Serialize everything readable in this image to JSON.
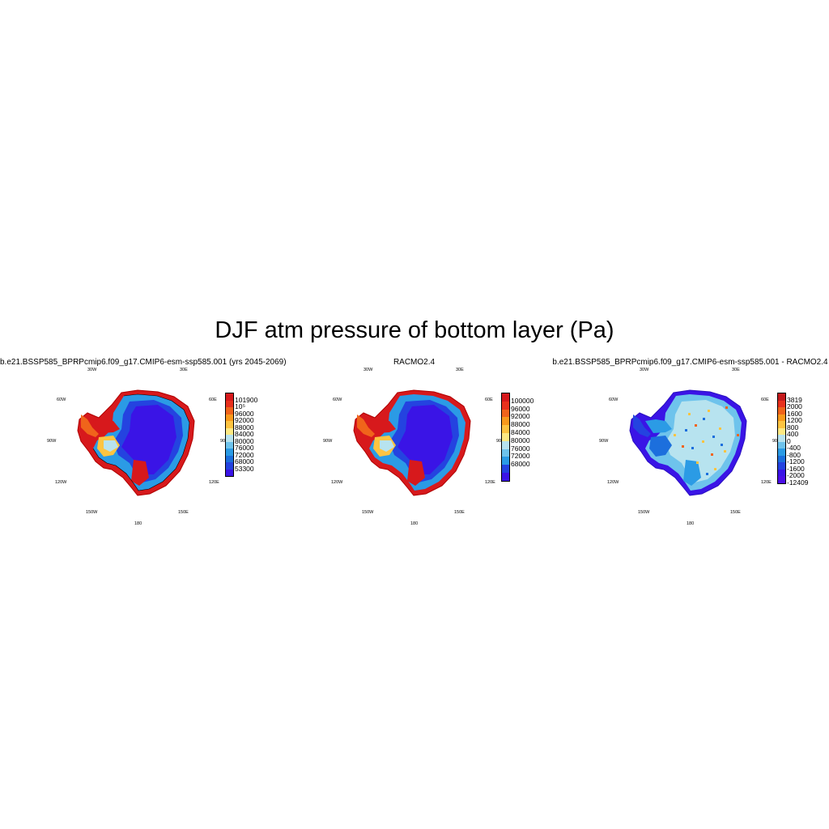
{
  "figure": {
    "title": "DJF atm pressure of bottom layer (Pa)"
  },
  "panels": [
    {
      "title": "b.e21.BSSP585_BPRPcmip6.f09_g17.CMIP6-esm-ssp585.001 (yrs 2045-2069)",
      "lon_labels": [
        "30W",
        "30E",
        "60W",
        "60E",
        "90W",
        "90E",
        "120W",
        "120E",
        "150W",
        "150E",
        "180"
      ],
      "colorbar": {
        "labels": [
          "101900",
          "10⁵",
          "96000",
          "92000",
          "88000",
          "84000",
          "80000",
          "76000",
          "72000",
          "68000",
          "53300"
        ],
        "colors": [
          "#d7191c",
          "#e8311d",
          "#f0641b",
          "#f89a1c",
          "#fdc441",
          "#fde983",
          "#b7e3ef",
          "#6ec3ec",
          "#2b9be5",
          "#1c6fdd",
          "#2443e0",
          "#3a14e6"
        ]
      }
    },
    {
      "title": "RACMO2.4",
      "lon_labels": [
        "30W",
        "30E",
        "60W",
        "60E",
        "90W",
        "90E",
        "120W",
        "120E",
        "150W",
        "150E",
        "180"
      ],
      "colorbar": {
        "labels": [
          "100000",
          "96000",
          "92000",
          "88000",
          "84000",
          "80000",
          "76000",
          "72000",
          "68000"
        ],
        "colors": [
          "#d7191c",
          "#e8311d",
          "#f0641b",
          "#f89a1c",
          "#fdc441",
          "#fde983",
          "#b7e3ef",
          "#6ec3ec",
          "#2b9be5",
          "#2443e0",
          "#3a14e6"
        ]
      }
    },
    {
      "title": "b.e21.BSSP585_BPRPcmip6.f09_g17.CMIP6-esm-ssp585.001 - RACMO2.4",
      "lon_labels": [
        "30W",
        "30E",
        "60W",
        "60E",
        "90W",
        "90E",
        "120W",
        "120E",
        "150W",
        "150E",
        "180"
      ],
      "colorbar": {
        "labels": [
          "3819",
          "2000",
          "1600",
          "1200",
          "800",
          "400",
          "0",
          "-400",
          "-800",
          "-1200",
          "-1600",
          "-2000",
          "-12409"
        ],
        "colors": [
          "#c41a1c",
          "#e8311d",
          "#f0641b",
          "#f89a1c",
          "#fdc441",
          "#fde983",
          "#b7e3ef",
          "#6ec3ec",
          "#2b9be5",
          "#1c6fdd",
          "#2443e0",
          "#3a14e6",
          "#4b0ee8"
        ]
      }
    }
  ]
}
